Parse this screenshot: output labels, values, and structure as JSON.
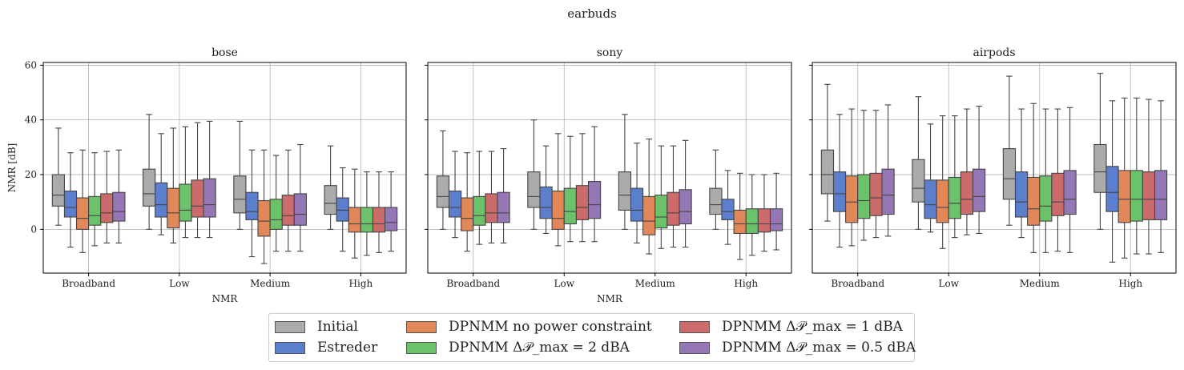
{
  "chart_data": {
    "type": "box",
    "suptitle": "earbuds",
    "ylabel": "NMR [dB]",
    "xlabel": "NMR",
    "ylim": [
      -16,
      61
    ],
    "yticks": [
      0,
      20,
      40,
      60
    ],
    "grid": true,
    "legend_position": "bottom-center",
    "categories": [
      "Broadband",
      "Low",
      "Medium",
      "High"
    ],
    "series": [
      {
        "name": "Initial",
        "color": "#ababab"
      },
      {
        "name": "Estreder",
        "color": "#5b7fcc"
      },
      {
        "name": "DPNMM no power constraint",
        "color": "#e2875a"
      },
      {
        "name": "DPNMM Δ𝒫_max = 2 dBA",
        "color": "#6cc26a"
      },
      {
        "name": "DPNMM Δ𝒫_max = 1 dBA",
        "color": "#cc6b6b"
      },
      {
        "name": "DPNMM Δ𝒫_max = 0.5 dBA",
        "color": "#9677b6"
      }
    ],
    "panels": [
      {
        "title": "bose",
        "boxes": [
          [
            [
              1.5,
              8.5,
              12.5,
              20,
              37
            ],
            [
              -6.5,
              4.5,
              8,
              14,
              28
            ],
            [
              -8.5,
              0,
              4,
              11.5,
              29
            ],
            [
              -6,
              1.5,
              5,
              12,
              28
            ],
            [
              -5,
              2.5,
              6,
              13,
              28.5
            ],
            [
              -5,
              3,
              6.5,
              13.5,
              29
            ]
          ],
          [
            [
              0,
              8.5,
              13,
              22,
              42
            ],
            [
              -2,
              4.5,
              9,
              17,
              35
            ],
            [
              -5,
              0.5,
              6,
              15,
              37
            ],
            [
              -3,
              3,
              7,
              16.5,
              37.5
            ],
            [
              -3,
              4.5,
              8.5,
              18,
              39
            ],
            [
              -3,
              4.5,
              9,
              18.5,
              39.5
            ]
          ],
          [
            [
              0,
              6,
              11,
              19.5,
              39.5
            ],
            [
              -10,
              3.5,
              6.5,
              13.5,
              29
            ],
            [
              -12.5,
              -2.5,
              3,
              10.5,
              29
            ],
            [
              -8,
              0,
              3.5,
              11,
              27
            ],
            [
              -8,
              1.5,
              5,
              12.5,
              29
            ],
            [
              -8,
              1.5,
              5.5,
              13,
              31
            ]
          ],
          [
            [
              0,
              5.5,
              9.5,
              16,
              30.5
            ],
            [
              -8,
              3,
              7,
              11.5,
              22.5
            ],
            [
              -10.5,
              -1,
              2,
              8,
              22
            ],
            [
              -9.5,
              -1,
              2,
              8,
              21
            ],
            [
              -8.5,
              -1,
              2,
              8,
              21
            ],
            [
              -8,
              -0.5,
              2.5,
              8,
              21
            ]
          ]
        ]
      },
      {
        "title": "sony",
        "boxes": [
          [
            [
              0,
              8,
              12,
              19.5,
              36
            ],
            [
              -3,
              4.5,
              8,
              14,
              28.5
            ],
            [
              -8,
              -0.5,
              4,
              11.5,
              28
            ],
            [
              -5.5,
              1.5,
              5,
              12,
              28.5
            ],
            [
              -5,
              2.5,
              6,
              13,
              28.5
            ],
            [
              -5,
              2.5,
              6,
              13.5,
              29.5
            ]
          ],
          [
            [
              0,
              8,
              12,
              21,
              40
            ],
            [
              -1.5,
              4,
              8,
              15.5,
              30.5
            ],
            [
              -6,
              0,
              4,
              14,
              35
            ],
            [
              -4.5,
              2,
              6.5,
              15,
              34
            ],
            [
              -4.5,
              3.5,
              8,
              16,
              35
            ],
            [
              -4.5,
              4,
              9,
              17.5,
              37.5
            ]
          ],
          [
            [
              0,
              7,
              12.5,
              21,
              42
            ],
            [
              -5,
              3,
              7,
              15,
              31.5
            ],
            [
              -9,
              -2,
              3,
              12,
              33
            ],
            [
              -7,
              0.5,
              4.5,
              12.5,
              30.5
            ],
            [
              -6.5,
              1.5,
              6,
              13.5,
              30.5
            ],
            [
              -6.5,
              2,
              6.5,
              14.5,
              32.5
            ]
          ],
          [
            [
              0,
              5.5,
              9,
              15,
              29
            ],
            [
              -5.5,
              3.5,
              6.5,
              11,
              21.5
            ],
            [
              -11,
              -1.5,
              2,
              7,
              20.5
            ],
            [
              -9.5,
              -1.5,
              2,
              7.5,
              20
            ],
            [
              -8,
              -1,
              2,
              7.5,
              20
            ],
            [
              -7.5,
              -0.5,
              2,
              7.5,
              20.5
            ]
          ]
        ]
      },
      {
        "title": "airpods",
        "boxes": [
          [
            [
              3,
              13,
              20,
              29,
              53
            ],
            [
              -6.5,
              6.5,
              13,
              21,
              42
            ],
            [
              -6,
              2.5,
              10,
              19.5,
              44
            ],
            [
              -4,
              4,
              10.5,
              20,
              43.5
            ],
            [
              -3,
              5,
              11.5,
              20.5,
              43.5
            ],
            [
              -2.5,
              5.5,
              12.5,
              22,
              45.5
            ]
          ],
          [
            [
              0,
              10,
              15,
              25.5,
              48.5
            ],
            [
              -1,
              4,
              9,
              18,
              38.5
            ],
            [
              -7,
              2.5,
              8,
              18,
              41.5
            ],
            [
              -3,
              4,
              9.5,
              19,
              41.5
            ],
            [
              -2,
              5.5,
              11,
              21,
              44
            ],
            [
              -1.5,
              6.5,
              12,
              22,
              45
            ]
          ],
          [
            [
              1.5,
              11,
              18.5,
              29.5,
              56
            ],
            [
              -3,
              4.5,
              10,
              21,
              44
            ],
            [
              -8.5,
              1.5,
              7.5,
              19,
              46
            ],
            [
              -8.5,
              3,
              8.5,
              19.5,
              44
            ],
            [
              -8,
              5,
              10,
              20.5,
              44
            ],
            [
              -8.5,
              5.5,
              11,
              21.5,
              44.5
            ]
          ],
          [
            [
              0,
              13.5,
              21,
              31,
              57
            ],
            [
              -12,
              6.5,
              13.5,
              23,
              47
            ],
            [
              -10.5,
              2.5,
              11,
              21.5,
              48
            ],
            [
              -9,
              3,
              11,
              21.5,
              48
            ],
            [
              -9,
              3.5,
              11,
              21,
              47.5
            ],
            [
              -8.5,
              3.5,
              11,
              21.5,
              47
            ]
          ]
        ]
      }
    ]
  }
}
